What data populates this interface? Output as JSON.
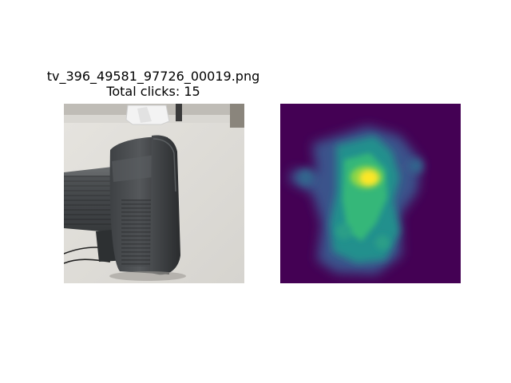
{
  "figure": {
    "title": {
      "filename": "tv_396_49581_97726_00019.png",
      "clicks": "Total clicks: 15"
    },
    "photo_panel": {
      "subject_icon": "crt-tv-rear-photo-icon"
    },
    "heatmap_panel": {
      "colormap": "viridis",
      "background_color": "#440154",
      "peak_color": "#fde725",
      "blob_icon": "click-heatmap-icon"
    }
  }
}
